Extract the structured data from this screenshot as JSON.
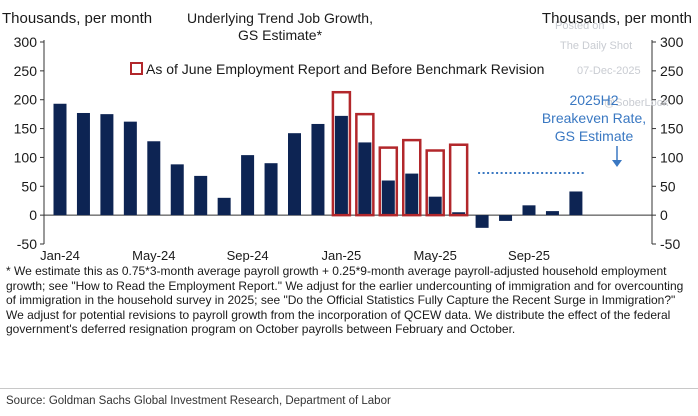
{
  "chart_data": {
    "type": "bar",
    "title": "Underlying Trend Job Growth,",
    "subtitle": "GS Estimate*",
    "ylabel_left": "Thousands, per month",
    "ylabel_right": "Thousands, per month",
    "ylim": [
      -50,
      300
    ],
    "yticks": [
      -50,
      0,
      50,
      100,
      150,
      200,
      250,
      300
    ],
    "ytick_labels": [
      "-50",
      "0",
      "50",
      "100",
      "150",
      "200",
      "250",
      "300"
    ],
    "months": [
      "Jan-24",
      "Feb-24",
      "Mar-24",
      "Apr-24",
      "May-24",
      "Jun-24",
      "Jul-24",
      "Aug-24",
      "Sep-24",
      "Oct-24",
      "Nov-24",
      "Dec-24",
      "Jan-25",
      "Feb-25",
      "Mar-25",
      "Apr-25",
      "May-25",
      "Jun-25",
      "Jul-25",
      "Aug-25",
      "Sep-25",
      "Oct-25",
      "Nov-25"
    ],
    "xtick_labels": [
      "Jan-24",
      "May-24",
      "Sep-24",
      "Jan-25",
      "May-25",
      "Sep-25"
    ],
    "xtick_month_index": [
      0,
      4,
      8,
      12,
      16,
      20
    ],
    "series": [
      {
        "name": "GS Estimate",
        "color": "#0d2453",
        "values": [
          193,
          177,
          175,
          162,
          128,
          88,
          68,
          30,
          104,
          90,
          142,
          158,
          172,
          126,
          60,
          72,
          32,
          5,
          -22,
          -10,
          17,
          7,
          41
        ]
      },
      {
        "name": "As of June Employment Report and Before Benchmark Revision",
        "color": "#b2272b",
        "values": [
          null,
          null,
          null,
          null,
          null,
          null,
          null,
          null,
          null,
          null,
          null,
          null,
          213,
          175,
          117,
          130,
          112,
          122,
          null,
          null,
          null,
          null,
          null
        ]
      }
    ],
    "legend": {
      "label": "As of June Employment Report and Before Benchmark Revision",
      "placement": "top-center"
    },
    "annotation": {
      "lines": [
        "2025H2",
        "Breakeven Rate,",
        "GS Estimate"
      ],
      "breakeven_value": 73,
      "color": "#3a78c2"
    },
    "watermark": [
      "Posted on",
      "The Daily Shot",
      "07-Dec-2025",
      "@SoberLook"
    ]
  },
  "footnote": "* We estimate this as 0.75*3-month average payroll growth + 0.25*9-month average payroll-adjusted household employment growth; see \"How to Read the Employment Report.\" We adjust for the earlier undercounting of immigration and for overcounting of immigration in the household survey in 2025; see \"Do the Official Statistics Fully Capture the Recent Surge in Immigration?\" We adjust for potential revisions to payroll growth from the incorporation of QCEW data. We distribute the effect of the federal government's deferred resignation program on October payrolls between February and October.",
  "source": "Source: Goldman Sachs Global Investment Research, Department of Labor"
}
